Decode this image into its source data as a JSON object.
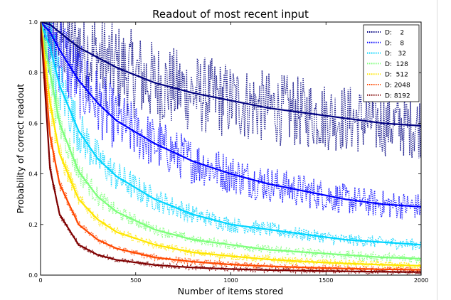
{
  "chart_data": {
    "type": "line",
    "title": "Readout of most recent input",
    "xlabel": "Number of items stored",
    "ylabel": "Probability of correct readout",
    "xlim": [
      0,
      2000
    ],
    "ylim": [
      0.0,
      1.0
    ],
    "xticks": [
      "0",
      "500",
      "1000",
      "1500",
      "2000"
    ],
    "yticks": [
      "0.0",
      "0.2",
      "0.4",
      "0.6",
      "0.8",
      "1.0"
    ],
    "legend_position": "top-right",
    "series": [
      {
        "name": "D:    2",
        "D": 2,
        "color": "#00007f",
        "smooth": {
          "x": [
            0,
            50,
            100,
            200,
            400,
            600,
            800,
            1000,
            1200,
            1400,
            1600,
            1800,
            2000
          ],
          "y": [
            1.0,
            0.99,
            0.96,
            0.9,
            0.82,
            0.76,
            0.72,
            0.69,
            0.66,
            0.64,
            0.62,
            0.6,
            0.59
          ]
        }
      },
      {
        "name": "D:    8",
        "D": 8,
        "color": "#0000ff",
        "smooth": {
          "x": [
            0,
            50,
            100,
            200,
            300,
            400,
            600,
            800,
            1000,
            1200,
            1400,
            1600,
            1800,
            2000
          ],
          "y": [
            1.0,
            0.96,
            0.89,
            0.77,
            0.68,
            0.61,
            0.52,
            0.45,
            0.4,
            0.36,
            0.33,
            0.3,
            0.28,
            0.27
          ]
        }
      },
      {
        "name": "D:   32",
        "D": 32,
        "color": "#00d4ff",
        "smooth": {
          "x": [
            0,
            50,
            100,
            200,
            300,
            400,
            600,
            800,
            1000,
            1200,
            1400,
            1600,
            1800,
            2000
          ],
          "y": [
            1.0,
            0.9,
            0.75,
            0.57,
            0.46,
            0.39,
            0.3,
            0.24,
            0.2,
            0.18,
            0.16,
            0.14,
            0.13,
            0.12
          ]
        }
      },
      {
        "name": "D:  128",
        "D": 128,
        "color": "#7cff79",
        "smooth": {
          "x": [
            0,
            50,
            100,
            200,
            300,
            400,
            600,
            800,
            1000,
            1200,
            1400,
            1600,
            1800,
            2000
          ],
          "y": [
            1.0,
            0.8,
            0.6,
            0.41,
            0.31,
            0.25,
            0.18,
            0.14,
            0.12,
            0.1,
            0.09,
            0.08,
            0.07,
            0.065
          ]
        }
      },
      {
        "name": "D:  512",
        "D": 512,
        "color": "#ffe600",
        "smooth": {
          "x": [
            0,
            50,
            100,
            200,
            300,
            400,
            600,
            800,
            1000,
            1200,
            1400,
            1600,
            1800,
            2000
          ],
          "y": [
            1.0,
            0.68,
            0.48,
            0.3,
            0.22,
            0.17,
            0.12,
            0.09,
            0.075,
            0.062,
            0.053,
            0.046,
            0.041,
            0.037
          ]
        }
      },
      {
        "name": "D: 2048",
        "D": 2048,
        "color": "#ff4800",
        "smooth": {
          "x": [
            0,
            50,
            100,
            200,
            300,
            400,
            600,
            800,
            1000,
            1200,
            1400,
            1600,
            1800,
            2000
          ],
          "y": [
            1.0,
            0.55,
            0.36,
            0.2,
            0.14,
            0.105,
            0.07,
            0.053,
            0.042,
            0.035,
            0.03,
            0.026,
            0.023,
            0.021
          ]
        }
      },
      {
        "name": "D: 8192",
        "D": 8192,
        "color": "#7f0000",
        "smooth": {
          "x": [
            0,
            50,
            100,
            200,
            300,
            400,
            600,
            800,
            1000,
            1200,
            1400,
            1600,
            1800,
            2000
          ],
          "y": [
            1.0,
            0.42,
            0.24,
            0.12,
            0.08,
            0.06,
            0.04,
            0.03,
            0.024,
            0.02,
            0.017,
            0.015,
            0.013,
            0.012
          ]
        }
      }
    ]
  }
}
